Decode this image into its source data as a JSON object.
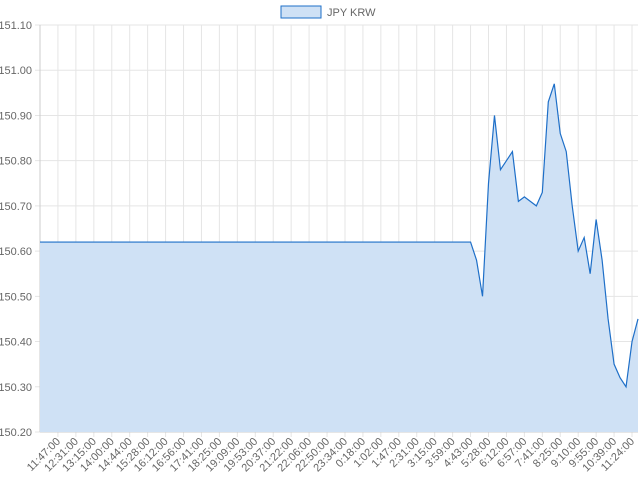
{
  "chart_data": {
    "type": "area",
    "color": "#1e6fc8",
    "fill": "#cfe1f5",
    "grid": true,
    "series": [
      {
        "name": "JPY KRW",
        "color": "#1e6fc8",
        "values": [
          150.62,
          150.62,
          150.62,
          150.62,
          150.62,
          150.62,
          150.62,
          150.62,
          150.62,
          150.62,
          150.62,
          150.62,
          150.62,
          150.62,
          150.62,
          150.62,
          150.62,
          150.62,
          150.62,
          150.62,
          150.62,
          150.62,
          150.62,
          150.62,
          150.62,
          150.62,
          150.62,
          150.62,
          150.62,
          150.62,
          150.62,
          150.62,
          150.62,
          150.62,
          150.62,
          150.62,
          150.62,
          150.62,
          150.62,
          150.62,
          150.62,
          150.62,
          150.62,
          150.62,
          150.62,
          150.62,
          150.62,
          150.62,
          150.62,
          150.62,
          150.62,
          150.62,
          150.62,
          150.62,
          150.62,
          150.62,
          150.62,
          150.62,
          150.62,
          150.62,
          150.62,
          150.62,
          150.62,
          150.62,
          150.62,
          150.62,
          150.62,
          150.62,
          150.62,
          150.62,
          150.62,
          150.62,
          150.62,
          150.58,
          150.5,
          150.75,
          150.9,
          150.78,
          150.8,
          150.82,
          150.71,
          150.72,
          150.71,
          150.7,
          150.73,
          150.93,
          150.97,
          150.86,
          150.82,
          150.7,
          150.6,
          150.63,
          150.55,
          150.67,
          150.58,
          150.45,
          150.35,
          150.32,
          150.3,
          150.4,
          150.45
        ]
      }
    ],
    "categories": [
      null,
      null,
      null,
      "11:47:00",
      null,
      null,
      "12:31:00",
      null,
      null,
      "13:15:00",
      null,
      null,
      "14:00:00",
      null,
      null,
      "14:44:00",
      null,
      null,
      "15:28:00",
      null,
      null,
      "16:12:00",
      null,
      null,
      "16:56:00",
      null,
      null,
      "17:41:00",
      null,
      null,
      "18:25:00",
      null,
      null,
      "19:09:00",
      null,
      null,
      "19:53:00",
      null,
      null,
      "20:37:00",
      null,
      null,
      "21:22:00",
      null,
      null,
      "22:06:00",
      null,
      null,
      "22:50:00",
      null,
      null,
      "23:34:00",
      null,
      null,
      "0:18:00",
      null,
      null,
      "1:02:00",
      null,
      null,
      "1:47:00",
      null,
      null,
      "2:31:00",
      null,
      null,
      "3:15:00",
      null,
      null,
      "3:59:00",
      null,
      null,
      "4:43:00",
      null,
      null,
      "5:28:00",
      null,
      null,
      "6:12:00",
      null,
      null,
      "6:57:00",
      null,
      null,
      "7:41:00",
      null,
      null,
      "8:25:00",
      null,
      null,
      "9:10:00",
      null,
      null,
      "9:55:00",
      null,
      null,
      "10:39:00",
      null,
      null,
      "11:24:00",
      null
    ],
    "ylim": [
      150.2,
      151.1
    ],
    "yticks": [
      {
        "value": 150.2,
        "label": "150.20"
      },
      {
        "value": 150.3,
        "label": "150.30"
      },
      {
        "value": 150.4,
        "label": "150.40"
      },
      {
        "value": 150.5,
        "label": "150.50"
      },
      {
        "value": 150.6,
        "label": "150.60"
      },
      {
        "value": 150.7,
        "label": "150.70"
      },
      {
        "value": 150.8,
        "label": "150.80"
      },
      {
        "value": 150.9,
        "label": "150.90"
      },
      {
        "value": 151.0,
        "label": "151.00"
      },
      {
        "value": 151.1,
        "label": "151.10"
      }
    ]
  }
}
